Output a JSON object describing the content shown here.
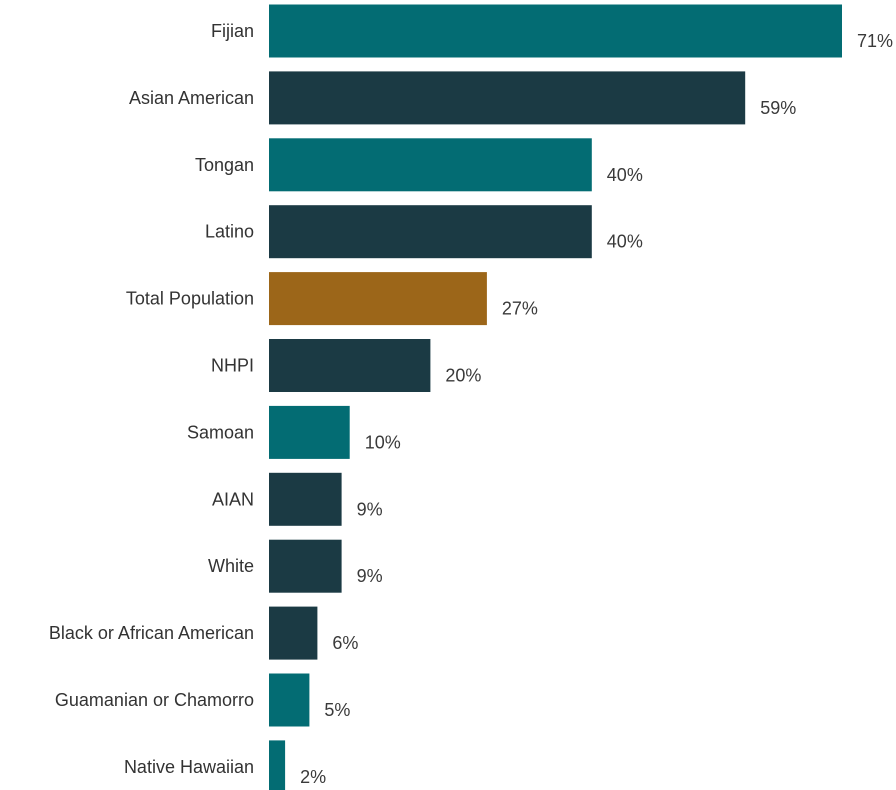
{
  "chart_data": {
    "type": "bar",
    "orientation": "horizontal",
    "categories": [
      "Fijian",
      "Asian American",
      "Tongan",
      "Latino",
      "Total Population",
      "NHPI",
      "Samoan",
      "AIAN",
      "White",
      "Black or African American",
      "Guamanian or Chamorro",
      "Native Hawaiian"
    ],
    "values": [
      71,
      59,
      40,
      40,
      27,
      20,
      10,
      9,
      9,
      6,
      5,
      2
    ],
    "value_labels": [
      "71%",
      "59%",
      "40%",
      "40%",
      "27%",
      "20%",
      "10%",
      "9%",
      "9%",
      "6%",
      "5%",
      "2%"
    ],
    "bar_colors": [
      "#036C73",
      "#1B3A44",
      "#036C73",
      "#1B3A44",
      "#9C6619",
      "#1B3A44",
      "#036C73",
      "#1B3A44",
      "#1B3A44",
      "#1B3A44",
      "#036C73",
      "#036C73"
    ],
    "unit": "%",
    "xlim": [
      0,
      71
    ],
    "grid": false,
    "legend": "none"
  }
}
